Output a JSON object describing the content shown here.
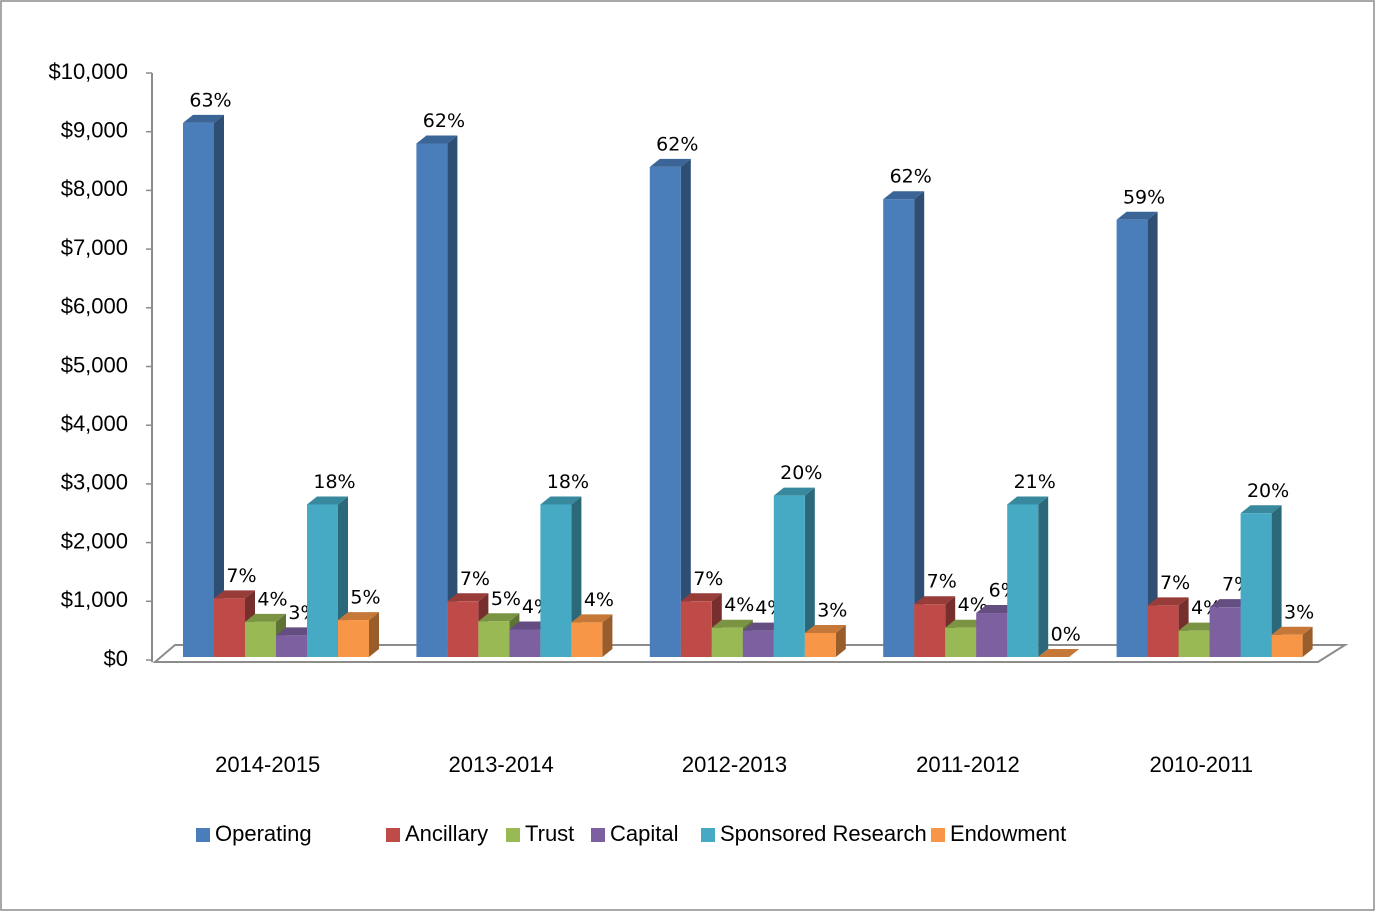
{
  "chart_data": {
    "type": "bar3d",
    "categories": [
      "2014-2015",
      "2013-2014",
      "2012-2013",
      "2011-2012",
      "2010-2011"
    ],
    "ylim": [
      0,
      10000
    ],
    "yticks": [
      {
        "value": 0,
        "label": "$0"
      },
      {
        "value": 1000,
        "label": "$1,000"
      },
      {
        "value": 2000,
        "label": "$2,000"
      },
      {
        "value": 3000,
        "label": "$3,000"
      },
      {
        "value": 4000,
        "label": "$4,000"
      },
      {
        "value": 5000,
        "label": "$5,000"
      },
      {
        "value": 6000,
        "label": "$6,000"
      },
      {
        "value": 7000,
        "label": "$7,000"
      },
      {
        "value": 8000,
        "label": "$8,000"
      },
      {
        "value": 9000,
        "label": "$9,000"
      },
      {
        "value": 10000,
        "label": "$10,000"
      }
    ],
    "legend": "bottom",
    "series": [
      {
        "name": "Operating",
        "color": "#4a7ebb",
        "values": [
          9150,
          8800,
          8400,
          7850,
          7500
        ],
        "labels": [
          "63%",
          "62%",
          "62%",
          "62%",
          "59%"
        ]
      },
      {
        "name": "Ancillary",
        "color": "#be4b48",
        "values": [
          1050,
          1000,
          1000,
          950,
          930
        ],
        "labels": [
          "7%",
          "7%",
          "7%",
          "7%",
          "7%"
        ]
      },
      {
        "name": "Trust",
        "color": "#98b954",
        "values": [
          650,
          660,
          550,
          550,
          500
        ],
        "labels": [
          "4%",
          "5%",
          "4%",
          "4%",
          "4%"
        ]
      },
      {
        "name": "Capital",
        "color": "#7d60a0",
        "values": [
          420,
          520,
          500,
          800,
          900
        ],
        "labels": [
          "3%",
          "4%",
          "4%",
          "6%",
          "7%"
        ]
      },
      {
        "name": "Sponsored Research",
        "color": "#46aac5",
        "values": [
          2650,
          2650,
          2800,
          2650,
          2500
        ],
        "labels": [
          "18%",
          "18%",
          "20%",
          "21%",
          "20%"
        ]
      },
      {
        "name": "Endowment",
        "color": "#f79646",
        "values": [
          680,
          640,
          460,
          0,
          430
        ],
        "labels": [
          "5%",
          "4%",
          "3%",
          "0%",
          "3%"
        ]
      }
    ]
  }
}
